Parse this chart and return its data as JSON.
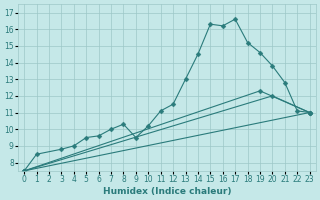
{
  "xlabel": "Humidex (Indice chaleur)",
  "series": [
    {
      "x": [
        0,
        1,
        3,
        4,
        5,
        6,
        7,
        8,
        9,
        10,
        11,
        12,
        13,
        14,
        15,
        16,
        17,
        18,
        19,
        20,
        21,
        22,
        23
      ],
      "y": [
        7.5,
        8.5,
        8.8,
        9.0,
        9.5,
        9.6,
        10.0,
        10.3,
        9.5,
        10.2,
        11.1,
        11.5,
        13.0,
        14.5,
        16.3,
        16.2,
        16.6,
        15.2,
        14.6,
        13.8,
        12.8,
        11.1,
        11.0
      ]
    },
    {
      "x": [
        0,
        23
      ],
      "y": [
        7.5,
        11.0
      ]
    },
    {
      "x": [
        0,
        19,
        23
      ],
      "y": [
        7.5,
        12.3,
        11.0
      ]
    },
    {
      "x": [
        0,
        20,
        23
      ],
      "y": [
        7.5,
        12.0,
        11.0
      ]
    }
  ],
  "line_color": "#2a7b7b",
  "marker": "D",
  "marker_size": 2.5,
  "bg_color": "#c5e8e8",
  "grid_color": "#9dc8c8",
  "ylim": [
    7.5,
    17.5
  ],
  "xlim": [
    -0.5,
    23.5
  ],
  "yticks": [
    8,
    9,
    10,
    11,
    12,
    13,
    14,
    15,
    16,
    17
  ],
  "xticks": [
    0,
    1,
    2,
    3,
    4,
    5,
    6,
    7,
    8,
    9,
    10,
    11,
    12,
    13,
    14,
    15,
    16,
    17,
    18,
    19,
    20,
    21,
    22,
    23
  ],
  "label_fontsize": 6.5,
  "tick_fontsize": 5.5
}
